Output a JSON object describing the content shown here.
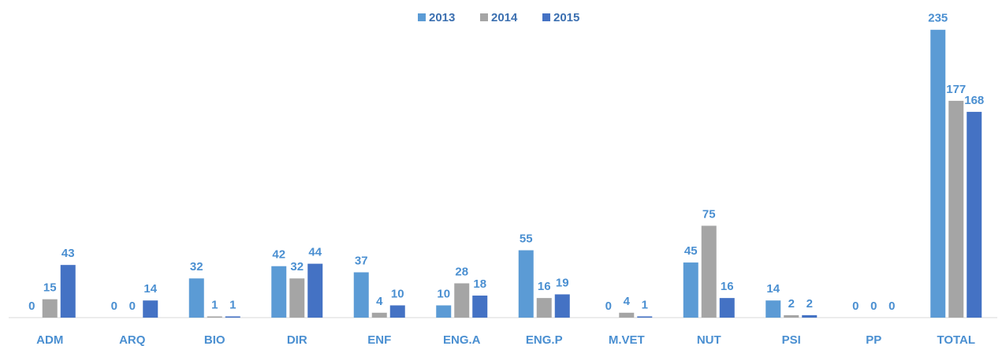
{
  "chart_data": {
    "type": "bar",
    "categories": [
      "ADM",
      "ARQ",
      "BIO",
      "DIR",
      "ENF",
      "ENG.A",
      "ENG.P",
      "M.VET",
      "NUT",
      "PSI",
      "PP",
      "TOTAL"
    ],
    "series": [
      {
        "name": "2013",
        "color": "#5b9bd5",
        "values": [
          0,
          0,
          32,
          42,
          37,
          10,
          55,
          0,
          45,
          14,
          0,
          235
        ]
      },
      {
        "name": "2014",
        "color": "#a5a5a5",
        "values": [
          15,
          0,
          1,
          32,
          4,
          28,
          16,
          4,
          75,
          2,
          0,
          177
        ]
      },
      {
        "name": "2015",
        "color": "#4472c4",
        "values": [
          43,
          14,
          1,
          44,
          10,
          18,
          19,
          1,
          16,
          2,
          0,
          168
        ]
      }
    ],
    "ylim": [
      0,
      240
    ],
    "legend": "top"
  }
}
